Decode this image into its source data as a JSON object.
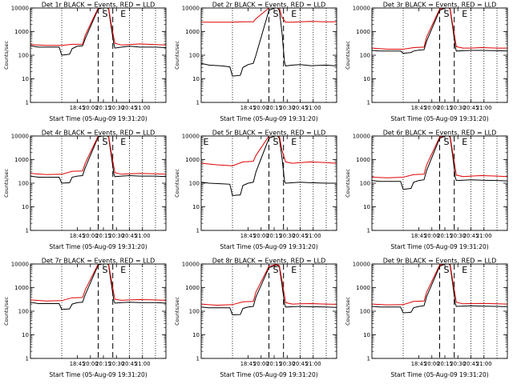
{
  "chart_data": [
    {
      "type": "line",
      "title": "Det 1r BLACK = Events, RED = LLD",
      "markers": [
        "S",
        "E"
      ],
      "xlabel": "Start Time (05-Aug-09 19:31:20)",
      "ylabel": "Counts/sec",
      "ylim": [
        1,
        10000
      ],
      "yscale": "log",
      "ytick_labels": [
        "1",
        "10",
        "100",
        "1000",
        "10000"
      ],
      "xtick_labels": [
        "18:45",
        "20:00",
        "20:15",
        "20:30",
        "20:45",
        "21:00"
      ],
      "series": [
        {
          "name": "BLACK",
          "color": "#000000",
          "x": [
            0,
            0.15,
            0.55,
            0.6,
            0.75,
            0.8,
            0.9,
            1.0,
            1.05,
            1.3,
            1.45,
            1.5,
            1.55,
            1.6,
            1.62,
            1.75,
            1.9,
            2.1,
            2.4,
            2.6
          ],
          "y": [
            250,
            220,
            220,
            100,
            110,
            190,
            240,
            250,
            500,
            9000,
            11000,
            9000,
            1500,
            300,
            200,
            220,
            240,
            220,
            220,
            210
          ]
        },
        {
          "name": "RED",
          "color": "#e00000",
          "x": [
            0,
            0.3,
            0.6,
            0.8,
            1.0,
            1.05,
            1.3,
            1.45,
            1.5,
            1.55,
            1.62,
            1.75,
            1.9,
            2.1,
            2.4,
            2.6
          ],
          "y": [
            280,
            260,
            260,
            290,
            290,
            700,
            10000,
            11000,
            10000,
            2000,
            320,
            270,
            280,
            300,
            280,
            270
          ]
        }
      ]
    },
    {
      "type": "line",
      "title": "Det 2r BLACK = Events, RED = LLD",
      "markers": [
        "S",
        "E"
      ],
      "xlabel": "Start Time (05-Aug-09 19:31:20)",
      "ylabel": "Counts/sec",
      "ylim": [
        1,
        10000
      ],
      "yscale": "log",
      "ytick_labels": [
        "1",
        "10",
        "100",
        "1000",
        "10000"
      ],
      "xtick_labels": [
        "18:45",
        "20:00",
        "20:15",
        "20:30",
        "20:45",
        "21:00"
      ],
      "series": [
        {
          "name": "BLACK",
          "color": "#000000",
          "x": [
            0,
            0.15,
            0.4,
            0.55,
            0.6,
            0.75,
            0.8,
            0.9,
            1.0,
            1.05,
            1.3,
            1.45,
            1.5,
            1.55,
            1.6,
            1.62,
            1.75,
            1.9,
            2.1,
            2.4,
            2.6
          ],
          "y": [
            45,
            38,
            35,
            32,
            13,
            14,
            30,
            40,
            45,
            100,
            8000,
            11000,
            8000,
            900,
            50,
            35,
            38,
            40,
            36,
            38,
            35
          ]
        },
        {
          "name": "RED",
          "color": "#e00000",
          "x": [
            0,
            0.3,
            0.6,
            0.8,
            1.0,
            1.05,
            1.3,
            1.45,
            1.5,
            1.55,
            1.62,
            1.75,
            1.9,
            2.1,
            2.4,
            2.6
          ],
          "y": [
            2500,
            2500,
            2500,
            2600,
            2600,
            3500,
            10000,
            11000,
            10000,
            4000,
            2500,
            2500,
            2600,
            2700,
            2600,
            2600
          ]
        }
      ]
    },
    {
      "type": "line",
      "title": "Det 3r BLACK = Events, RED = LLD",
      "markers": [
        "S",
        "E"
      ],
      "xlabel": "Start Time (05-Aug-09 19:31:20)",
      "ylabel": "Counts/sec",
      "ylim": [
        1,
        10000
      ],
      "yscale": "log",
      "ytick_labels": [
        "1",
        "10",
        "100",
        "1000",
        "10000"
      ],
      "xtick_labels": [
        "18:45",
        "20:00",
        "20:15",
        "20:30",
        "20:45",
        "21:00"
      ],
      "series": [
        {
          "name": "BLACK",
          "color": "#000000",
          "x": [
            0,
            0.15,
            0.55,
            0.6,
            0.75,
            0.8,
            0.9,
            1.0,
            1.05,
            1.3,
            1.45,
            1.5,
            1.55,
            1.6,
            1.62,
            1.75,
            1.9,
            2.1,
            2.4,
            2.6
          ],
          "y": [
            160,
            150,
            150,
            120,
            130,
            150,
            165,
            170,
            400,
            8000,
            11000,
            9000,
            1500,
            220,
            150,
            155,
            160,
            160,
            155,
            150
          ]
        },
        {
          "name": "RED",
          "color": "#e00000",
          "x": [
            0,
            0.3,
            0.6,
            0.8,
            1.0,
            1.05,
            1.3,
            1.45,
            1.5,
            1.55,
            1.62,
            1.75,
            1.9,
            2.1,
            2.4,
            2.6
          ],
          "y": [
            200,
            180,
            180,
            210,
            220,
            600,
            9000,
            11000,
            9500,
            2000,
            230,
            200,
            200,
            210,
            200,
            200
          ]
        }
      ]
    },
    {
      "type": "line",
      "title": "Det 4r BLACK = Events, RED = LLD",
      "markers": [
        "S",
        "E"
      ],
      "xlabel": "Start Time (05-Aug-09 19:31:20)",
      "ylabel": "Counts/sec",
      "ylim": [
        1,
        10000
      ],
      "yscale": "log",
      "ytick_labels": [
        "1",
        "10",
        "100",
        "1000",
        "10000"
      ],
      "xtick_labels": [
        "18:45",
        "20:00",
        "20:15",
        "20:30",
        "20:45",
        "21:00"
      ],
      "series": [
        {
          "name": "BLACK",
          "color": "#000000",
          "x": [
            0,
            0.15,
            0.55,
            0.6,
            0.75,
            0.8,
            0.9,
            1.0,
            1.05,
            1.3,
            1.45,
            1.5,
            1.55,
            1.6,
            1.62,
            1.75,
            1.9,
            2.1,
            2.4,
            2.6
          ],
          "y": [
            200,
            180,
            180,
            100,
            105,
            180,
            200,
            210,
            450,
            9000,
            11000,
            9000,
            1500,
            250,
            190,
            200,
            210,
            200,
            200,
            190
          ]
        },
        {
          "name": "RED",
          "color": "#e00000",
          "x": [
            0,
            0.3,
            0.6,
            0.8,
            1.0,
            1.05,
            1.3,
            1.45,
            1.5,
            1.55,
            1.62,
            1.75,
            1.9,
            2.1,
            2.4,
            2.6
          ],
          "y": [
            260,
            230,
            240,
            320,
            330,
            700,
            10000,
            11000,
            10000,
            2000,
            280,
            240,
            250,
            260,
            250,
            240
          ]
        }
      ]
    },
    {
      "type": "line",
      "title": "Det 5r BLACK = Events, RED = LLD",
      "markers": [
        "E",
        "S",
        "E"
      ],
      "xlabel": "Start Time (05-Aug-09 19:31:20)",
      "ylabel": "Counts/sec",
      "ylim": [
        1,
        10000
      ],
      "yscale": "log",
      "ytick_labels": [
        "1",
        "10",
        "100",
        "1000",
        "10000"
      ],
      "xtick_labels": [
        "18:45",
        "20:00",
        "20:15",
        "20:30",
        "20:45",
        "21:00"
      ],
      "series": [
        {
          "name": "BLACK",
          "color": "#000000",
          "x": [
            0,
            0.15,
            0.4,
            0.55,
            0.6,
            0.75,
            0.8,
            0.9,
            1.0,
            1.05,
            1.3,
            1.45,
            1.5,
            1.55,
            1.6,
            1.62,
            1.75,
            1.9,
            2.1,
            2.4,
            2.6
          ],
          "y": [
            110,
            100,
            95,
            90,
            30,
            32,
            80,
            100,
            110,
            300,
            8000,
            11000,
            8000,
            1200,
            120,
            100,
            105,
            110,
            105,
            100,
            100
          ]
        },
        {
          "name": "RED",
          "color": "#e00000",
          "x": [
            0,
            0.3,
            0.6,
            0.8,
            1.0,
            1.05,
            1.3,
            1.45,
            1.5,
            1.55,
            1.62,
            1.75,
            1.9,
            2.1,
            2.4,
            2.6
          ],
          "y": [
            700,
            600,
            550,
            800,
            850,
            1500,
            10000,
            11000,
            10000,
            2500,
            800,
            700,
            750,
            800,
            750,
            700
          ]
        }
      ]
    },
    {
      "type": "line",
      "title": "Det 6r BLACK = Events, RED = LLD",
      "markers": [
        "S",
        "E"
      ],
      "xlabel": "Start Time (05-Aug-09 19:31:20)",
      "ylabel": "Counts/sec",
      "ylim": [
        1,
        10000
      ],
      "yscale": "log",
      "ytick_labels": [
        "1",
        "10",
        "100",
        "1000",
        "10000"
      ],
      "xtick_labels": [
        "18:45",
        "20:00",
        "20:15",
        "20:30",
        "20:45",
        "21:00"
      ],
      "series": [
        {
          "name": "BLACK",
          "color": "#000000",
          "x": [
            0,
            0.15,
            0.55,
            0.6,
            0.75,
            0.8,
            0.9,
            1.0,
            1.05,
            1.3,
            1.45,
            1.5,
            1.55,
            1.6,
            1.62,
            1.75,
            1.9,
            2.1,
            2.4,
            2.6
          ],
          "y": [
            130,
            120,
            120,
            55,
            60,
            110,
            130,
            140,
            350,
            8000,
            11000,
            9000,
            1400,
            180,
            130,
            135,
            140,
            135,
            130,
            125
          ]
        },
        {
          "name": "RED",
          "color": "#e00000",
          "x": [
            0,
            0.3,
            0.6,
            0.8,
            1.0,
            1.05,
            1.3,
            1.45,
            1.5,
            1.55,
            1.62,
            1.75,
            1.9,
            2.1,
            2.4,
            2.6
          ],
          "y": [
            180,
            170,
            180,
            230,
            240,
            600,
            9000,
            11000,
            10000,
            2000,
            220,
            190,
            200,
            210,
            200,
            190
          ]
        }
      ]
    },
    {
      "type": "line",
      "title": "Det 7r BLACK = Events, RED = LLD",
      "markers": [
        "S",
        "E"
      ],
      "xlabel": "Start Time (05-Aug-09 19:31:20)",
      "ylabel": "Counts/sec",
      "ylim": [
        1,
        10000
      ],
      "yscale": "log",
      "ytick_labels": [
        "1",
        "10",
        "100",
        "1000",
        "10000"
      ],
      "xtick_labels": [
        "18:45",
        "20:00",
        "20:15",
        "20:30",
        "20:45",
        "21:00"
      ],
      "series": [
        {
          "name": "BLACK",
          "color": "#000000",
          "x": [
            0,
            0.15,
            0.55,
            0.6,
            0.75,
            0.8,
            0.9,
            1.0,
            1.05,
            1.3,
            1.45,
            1.5,
            1.55,
            1.6,
            1.62,
            1.75,
            1.9,
            2.1,
            2.4,
            2.6
          ],
          "y": [
            240,
            210,
            210,
            120,
            125,
            200,
            230,
            240,
            500,
            9000,
            11000,
            9000,
            1500,
            280,
            220,
            230,
            240,
            230,
            230,
            220
          ]
        },
        {
          "name": "RED",
          "color": "#e00000",
          "x": [
            0,
            0.3,
            0.6,
            0.8,
            1.0,
            1.05,
            1.3,
            1.45,
            1.5,
            1.55,
            1.62,
            1.75,
            1.9,
            2.1,
            2.4,
            2.6
          ],
          "y": [
            300,
            270,
            280,
            370,
            380,
            800,
            10000,
            11000,
            10000,
            2200,
            320,
            290,
            300,
            310,
            300,
            290
          ]
        }
      ]
    },
    {
      "type": "line",
      "title": "Det 8r BLACK = Events, RED = LLD",
      "markers": [
        "S",
        "E"
      ],
      "xlabel": "Start Time (05-Aug-09 19:31:20)",
      "ylabel": "Counts/sec",
      "ylim": [
        1,
        10000
      ],
      "yscale": "log",
      "ytick_labels": [
        "1",
        "10",
        "100",
        "1000",
        "10000"
      ],
      "xtick_labels": [
        "18:45",
        "20:00",
        "20:15",
        "20:30",
        "20:45",
        "21:00"
      ],
      "series": [
        {
          "name": "BLACK",
          "color": "#000000",
          "x": [
            0,
            0.15,
            0.55,
            0.6,
            0.75,
            0.8,
            0.9,
            1.0,
            1.05,
            1.3,
            1.45,
            1.5,
            1.55,
            1.6,
            1.62,
            1.75,
            1.9,
            2.1,
            2.4,
            2.6
          ],
          "y": [
            150,
            140,
            140,
            70,
            72,
            130,
            150,
            160,
            400,
            7000,
            9000,
            7500,
            1300,
            200,
            150,
            155,
            160,
            155,
            150,
            145
          ]
        },
        {
          "name": "RED",
          "color": "#e00000",
          "x": [
            0,
            0.3,
            0.6,
            0.8,
            1.0,
            1.05,
            1.3,
            1.45,
            1.5,
            1.55,
            1.62,
            1.75,
            1.9,
            2.1,
            2.4,
            2.6
          ],
          "y": [
            200,
            180,
            190,
            250,
            260,
            650,
            8000,
            9500,
            8500,
            2000,
            230,
            200,
            205,
            210,
            200,
            195
          ]
        }
      ]
    },
    {
      "type": "line",
      "title": "Det 9r BLACK = Events, RED = LLD",
      "markers": [
        "S",
        "E"
      ],
      "xlabel": "Start Time (05-Aug-09 19:31:20)",
      "ylabel": "Counts/sec",
      "ylim": [
        1,
        10000
      ],
      "yscale": "log",
      "ytick_labels": [
        "1",
        "10",
        "100",
        "1000",
        "10000"
      ],
      "xtick_labels": [
        "18:45",
        "20:00",
        "20:15",
        "20:30",
        "20:45",
        "21:00"
      ],
      "series": [
        {
          "name": "BLACK",
          "color": "#000000",
          "x": [
            0,
            0.15,
            0.55,
            0.6,
            0.75,
            0.8,
            0.9,
            1.0,
            1.05,
            1.3,
            1.45,
            1.5,
            1.55,
            1.6,
            1.62,
            1.75,
            1.9,
            2.1,
            2.4,
            2.6
          ],
          "y": [
            160,
            150,
            150,
            85,
            90,
            140,
            160,
            170,
            420,
            8000,
            11000,
            9000,
            1400,
            210,
            160,
            165,
            170,
            165,
            160,
            155
          ]
        },
        {
          "name": "RED",
          "color": "#e00000",
          "x": [
            0,
            0.3,
            0.6,
            0.8,
            1.0,
            1.05,
            1.3,
            1.45,
            1.5,
            1.55,
            1.62,
            1.75,
            1.9,
            2.1,
            2.4,
            2.6
          ],
          "y": [
            200,
            185,
            190,
            260,
            270,
            650,
            9000,
            11000,
            10000,
            2000,
            240,
            205,
            210,
            215,
            205,
            200
          ]
        }
      ]
    }
  ]
}
